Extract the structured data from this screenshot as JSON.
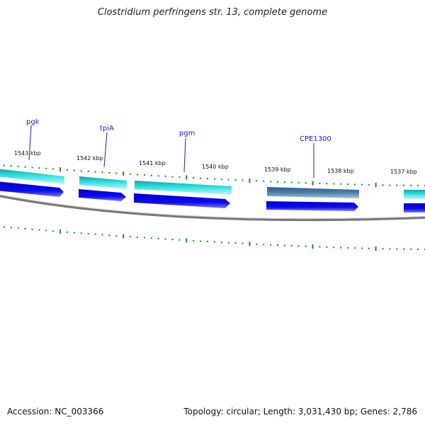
{
  "title": "Clostridium perfringens str. 13, complete genome",
  "footer": {
    "accession": "Accession: NC_003366",
    "summary": "Topology: circular; Length: 3,031,430 bp; Genes: 2,786"
  },
  "colors": {
    "backbone": "#808080",
    "cds": "#0a0ae6",
    "gene": "#27d6d6",
    "gene_dark": "#4a7ea6",
    "gc_tick": "#1f8a1f",
    "gene_label": "#1a1acc"
  },
  "tick_labels": [
    "1543 kbp",
    "1542 kbp",
    "1541 kbp",
    "1540 kbp",
    "1539 kbp",
    "1538 kbp",
    "1537 kbp"
  ],
  "gene_labels": [
    "pgk",
    "tpiA",
    "pgm",
    "CPE1300"
  ]
}
